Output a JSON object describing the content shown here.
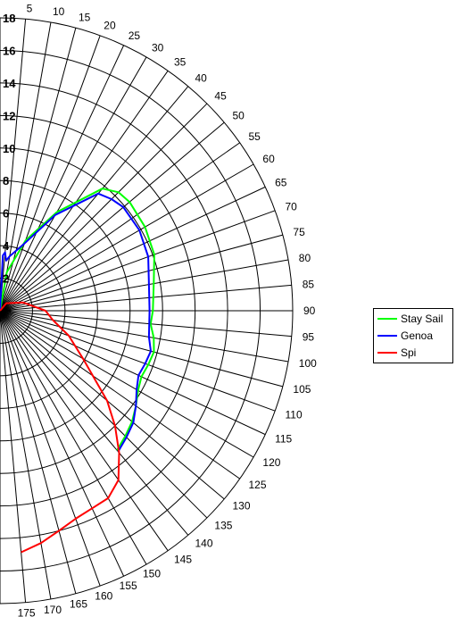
{
  "chart_data": {
    "type": "polar-line",
    "angle_ticks": [
      5,
      10,
      15,
      20,
      25,
      30,
      35,
      40,
      45,
      50,
      55,
      60,
      65,
      70,
      75,
      80,
      85,
      90,
      95,
      100,
      105,
      110,
      115,
      120,
      125,
      130,
      135,
      140,
      145,
      150,
      155,
      160,
      165,
      170,
      175
    ],
    "radius_ticks": [
      2,
      4,
      6,
      8,
      10,
      12,
      14,
      16,
      18
    ],
    "rlim": [
      0,
      18
    ],
    "legend_position": "right",
    "series": [
      {
        "name": "Stay Sail",
        "color": "#00ff00",
        "points": [
          [
            0,
            0
          ],
          [
            10,
            2.4
          ],
          [
            20,
            4.6
          ],
          [
            30,
            7.0
          ],
          [
            40,
            9.8
          ],
          [
            45,
            10.3
          ],
          [
            50,
            10.4
          ],
          [
            60,
            10.3
          ],
          [
            70,
            10.1
          ],
          [
            80,
            9.6
          ],
          [
            90,
            9.4
          ],
          [
            95,
            9.3
          ],
          [
            100,
            9.6
          ],
          [
            105,
            9.8
          ],
          [
            110,
            9.7
          ],
          [
            115,
            9.6
          ],
          [
            120,
            9.8
          ],
          [
            125,
            10.2
          ],
          [
            130,
            10.6
          ],
          [
            135,
            10.9
          ],
          [
            140,
            11.2
          ]
        ]
      },
      {
        "name": "Genoa",
        "color": "#0000ff",
        "points": [
          [
            0,
            0
          ],
          [
            3,
            3.4
          ],
          [
            5,
            3.6
          ],
          [
            7,
            3.1
          ],
          [
            10,
            3.4
          ],
          [
            20,
            4.4
          ],
          [
            30,
            6.8
          ],
          [
            40,
            9.4
          ],
          [
            45,
            9.7
          ],
          [
            50,
            9.9
          ],
          [
            60,
            9.9
          ],
          [
            70,
            9.7
          ],
          [
            80,
            9.3
          ],
          [
            90,
            9.2
          ],
          [
            100,
            9.3
          ],
          [
            105,
            9.6
          ],
          [
            110,
            9.5
          ],
          [
            115,
            9.4
          ],
          [
            120,
            9.7
          ],
          [
            125,
            10.2
          ],
          [
            130,
            10.7
          ],
          [
            135,
            11.0
          ],
          [
            140,
            11.3
          ]
        ]
      },
      {
        "name": "Spi",
        "color": "#ff0000",
        "points": [
          [
            0,
            0
          ],
          [
            40,
            0.6
          ],
          [
            70,
            1.5
          ],
          [
            90,
            2.8
          ],
          [
            100,
            3.3
          ],
          [
            110,
            4.5
          ],
          [
            120,
            5.9
          ],
          [
            130,
            8.6
          ],
          [
            135,
            10.0
          ],
          [
            140,
            11.4
          ],
          [
            145,
            12.7
          ],
          [
            150,
            13.3
          ],
          [
            155,
            13.4
          ],
          [
            160,
            13.6
          ],
          [
            165,
            14.0
          ],
          [
            170,
            14.5
          ],
          [
            175,
            14.9
          ]
        ]
      }
    ]
  },
  "legend": {
    "items": [
      {
        "label": "Stay Sail",
        "color": "#00ff00"
      },
      {
        "label": "Genoa",
        "color": "#0000ff"
      },
      {
        "label": "Spi",
        "color": "#ff0000"
      }
    ]
  }
}
